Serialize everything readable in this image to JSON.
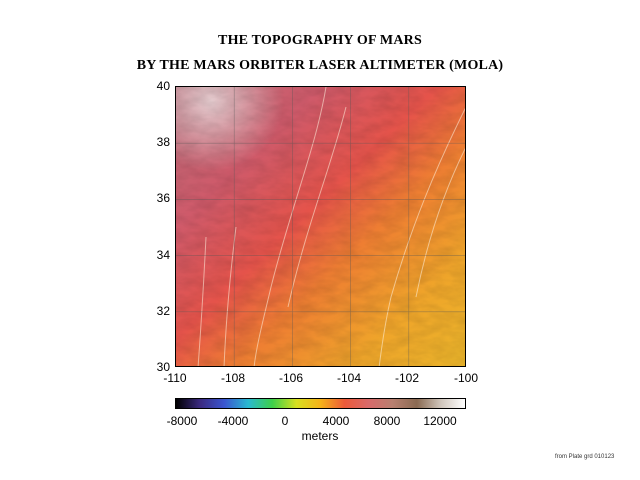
{
  "title_line1": "THE TOPOGRAPHY OF MARS",
  "title_line2": "BY THE MARS ORBITER LASER ALTIMETER (MOLA)",
  "map": {
    "longitude_range": [
      -110,
      -100
    ],
    "latitude_range": [
      30,
      40
    ],
    "grid": true,
    "x_ticks": [
      "-110",
      "-108",
      "-106",
      "-104",
      "-102",
      "-100"
    ],
    "y_ticks": [
      "40",
      "38",
      "36",
      "34",
      "32",
      "30"
    ]
  },
  "colorbar": {
    "ticks": [
      "-8000",
      "-4000",
      "0",
      "4000",
      "8000",
      "12000"
    ],
    "unit": "meters",
    "range": [
      -9000,
      14000
    ],
    "colors": [
      "#000000",
      "#3b2a80",
      "#3a55d0",
      "#2ab9d0",
      "#3ed04a",
      "#d8e020",
      "#f5b21a",
      "#ec5a3a",
      "#d86a6a",
      "#b88070",
      "#8a6a52",
      "#d0c6bc",
      "#ffffff"
    ]
  },
  "credit": "from Plate grd 010123"
}
